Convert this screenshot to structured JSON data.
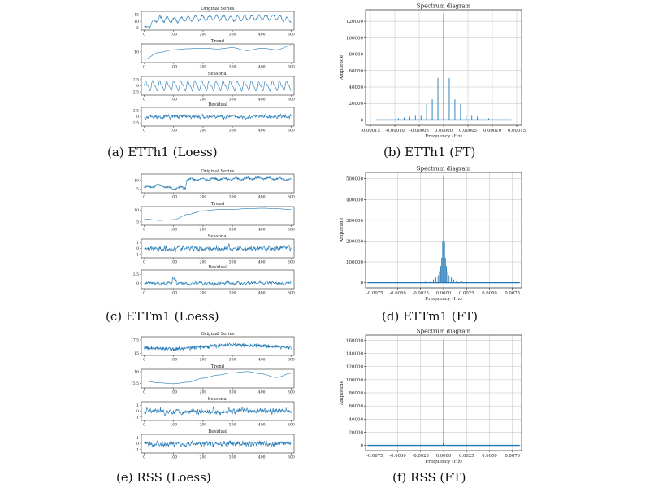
{
  "captions": [
    "(a) ETTh1 (Loess)",
    "(b) ETTh1 (FT)",
    "(c) ETTm1 (Loess)",
    "(d) ETTm1 (FT)",
    "(e) RSS (Loess)",
    "(f) RSS (FT)"
  ],
  "colors": {
    "line": "#1f77b4",
    "grid": "#b0b0b0",
    "axis": "#000000"
  },
  "chart_data": [
    {
      "id": "a",
      "type": "line",
      "caption": "(a) ETTh1 (Loess)",
      "x_ticks": [
        0,
        100,
        200,
        300,
        400,
        500
      ],
      "xlim": [
        -10,
        510
      ],
      "subplots": [
        {
          "title": "Original Series",
          "ylim": [
            3.5,
            17.5
          ],
          "y_ticks": [
            5,
            10,
            15
          ],
          "shape": "original_h1",
          "x": [
            0,
            10,
            50,
            100,
            150,
            200,
            250,
            300,
            350,
            400,
            450,
            500
          ],
          "y": [
            6,
            6.5,
            12,
            11,
            12,
            12.5,
            13,
            12,
            12.5,
            13,
            13,
            11
          ]
        },
        {
          "title": "Trend",
          "ylim": [
            6,
            13
          ],
          "y_ticks": [
            10
          ],
          "shape": "trend_h1",
          "x": [
            0,
            50,
            100,
            150,
            200,
            250,
            300,
            350,
            400,
            450,
            500
          ],
          "y": [
            7.2,
            9.8,
            10.8,
            11.2,
            11.4,
            11.1,
            11.6,
            10.5,
            11.4,
            10.8,
            12.4
          ]
        },
        {
          "title": "Seasonal",
          "ylim": [
            -3.8,
            3.8
          ],
          "y_ticks": [
            2.5,
            0.0,
            -2.5
          ],
          "shape": "seasonal_h1",
          "amplitude": 2.5,
          "period": 24
        },
        {
          "title": "Residual",
          "ylim": [
            -3.8,
            3.8
          ],
          "y_ticks": [
            2.5,
            0.0,
            -2.5
          ],
          "shape": "residual_h1",
          "amplitude": 2.5
        }
      ]
    },
    {
      "id": "b",
      "type": "line",
      "caption": "(b) ETTh1 (FT)",
      "title": "Spectrum diagram",
      "xlabel": "Frequency (Hz)",
      "ylabel": "Amplitude",
      "xlim": [
        -0.00016,
        0.00016
      ],
      "ylim": [
        -6500,
        134000
      ],
      "x_ticks": [
        -0.00015,
        -0.0001,
        -5e-05,
        0.0,
        5e-05,
        0.0001,
        0.00015
      ],
      "x_tick_labels": [
        "-0.00015",
        "-0.00010",
        "-0.00005",
        "0.00000",
        "0.00005",
        "0.00010",
        "0.00015"
      ],
      "y_ticks": [
        0,
        20000,
        40000,
        60000,
        80000,
        100000,
        120000
      ],
      "peaks": [
        {
          "x": 0.0,
          "y": 129000
        },
        {
          "x": -1.16e-05,
          "y": 51000
        },
        {
          "x": 1.16e-05,
          "y": 51000
        },
        {
          "x": -2.32e-05,
          "y": 25000
        },
        {
          "x": 2.32e-05,
          "y": 25000
        },
        {
          "x": -3.48e-05,
          "y": 19000
        },
        {
          "x": 3.48e-05,
          "y": 19000
        },
        {
          "x": -4.63e-05,
          "y": 5000
        },
        {
          "x": 4.63e-05,
          "y": 5000
        },
        {
          "x": -5.79e-05,
          "y": 5000
        },
        {
          "x": 5.79e-05,
          "y": 5000
        },
        {
          "x": -6.94e-05,
          "y": 4000
        },
        {
          "x": 6.94e-05,
          "y": 4000
        },
        {
          "x": -8.1e-05,
          "y": 3000
        },
        {
          "x": 8.1e-05,
          "y": 3000
        },
        {
          "x": -9.26e-05,
          "y": 2000
        },
        {
          "x": 9.26e-05,
          "y": 2000
        }
      ],
      "span": [
        -0.000139,
        0.000139
      ]
    },
    {
      "id": "c",
      "type": "line",
      "caption": "(c) ETTm1 (Loess)",
      "x_ticks": [
        0,
        100,
        200,
        300,
        400,
        500
      ],
      "xlim": [
        -10,
        510
      ],
      "subplots": [
        {
          "title": "Original Series",
          "ylim": [
            3,
            13.5
          ],
          "y_ticks": [
            5,
            10
          ],
          "shape": "original_m1",
          "x": [
            0,
            50,
            100,
            140,
            145,
            200,
            300,
            400,
            500
          ],
          "y": [
            6,
            7,
            5.5,
            6,
            10.5,
            10.5,
            10.8,
            11.2,
            10.5
          ]
        },
        {
          "title": "Trend",
          "ylim": [
            3.5,
            11.5
          ],
          "y_ticks": [
            5,
            10
          ],
          "shape": "trend_m1",
          "x": [
            0,
            50,
            100,
            150,
            200,
            250,
            300,
            350,
            400,
            450,
            500
          ],
          "y": [
            6.2,
            5.6,
            5.9,
            8.2,
            9.7,
            10.2,
            10.3,
            10.6,
            10.8,
            10.6,
            10.2
          ]
        },
        {
          "title": "Seasonal",
          "ylim": [
            -1.6,
            1.6
          ],
          "y_ticks": [
            1,
            0,
            -1
          ],
          "shape": "seasonal_m1",
          "amplitude": 1.0
        },
        {
          "title": "Residual",
          "ylim": [
            -1.6,
            3.8
          ],
          "y_ticks": [
            2.5,
            0.0
          ],
          "shape": "residual_m1",
          "amplitude": 1.2
        }
      ]
    },
    {
      "id": "d",
      "type": "line",
      "caption": "(d) ETTm1 (FT)",
      "title": "Spectrum diagram",
      "xlabel": "Frequency (Hz)",
      "ylabel": "Amplitude",
      "xlim": [
        -0.0085,
        0.0085
      ],
      "ylim": [
        -25000,
        530000
      ],
      "x_ticks": [
        -0.0075,
        -0.005,
        -0.0025,
        0.0,
        0.0025,
        0.005,
        0.0075
      ],
      "x_tick_labels": [
        "-0.0075",
        "-0.0050",
        "-0.0025",
        "0.0000",
        "0.0025",
        "0.0050",
        "0.0075"
      ],
      "y_ticks": [
        0,
        100000,
        200000,
        300000,
        400000,
        500000
      ],
      "peaks": [
        {
          "x": 0.0,
          "y": 515000
        },
        {
          "x": -0.0001,
          "y": 200000
        },
        {
          "x": 0.0001,
          "y": 200000
        },
        {
          "x": -0.0002,
          "y": 120000
        },
        {
          "x": 0.0002,
          "y": 120000
        },
        {
          "x": -0.0003,
          "y": 80000
        },
        {
          "x": 0.0003,
          "y": 80000
        },
        {
          "x": -0.00045,
          "y": 55000
        },
        {
          "x": 0.00045,
          "y": 55000
        },
        {
          "x": -0.0006,
          "y": 35000
        },
        {
          "x": 0.0006,
          "y": 35000
        },
        {
          "x": -0.00085,
          "y": 25000
        },
        {
          "x": 0.00085,
          "y": 25000
        },
        {
          "x": -0.0011,
          "y": 15000
        },
        {
          "x": 0.0011,
          "y": 15000
        },
        {
          "x": -0.0014,
          "y": 8000
        },
        {
          "x": 0.0014,
          "y": 8000
        },
        {
          "x": -0.002,
          "y": 5000
        },
        {
          "x": 0.002,
          "y": 5000
        },
        {
          "x": -0.0025,
          "y": 3000
        },
        {
          "x": 0.0025,
          "y": 3000
        }
      ],
      "span": [
        -0.0083,
        0.0083
      ]
    },
    {
      "id": "e",
      "type": "line",
      "caption": "(e) RSS (Loess)",
      "x_ticks": [
        0,
        100,
        200,
        300,
        400,
        500
      ],
      "xlim": [
        -10,
        510
      ],
      "subplots": [
        {
          "title": "Original Series",
          "ylim": [
            14.6,
            18.1
          ],
          "y_ticks": [
            17.5,
            15.0
          ],
          "shape": "original_rss",
          "x": [
            0,
            100,
            200,
            300,
            400,
            500
          ],
          "y": [
            16.0,
            15.8,
            16.2,
            16.6,
            16.4,
            16.1
          ]
        },
        {
          "title": "Trend",
          "ylim": [
            15.3,
            16.1
          ],
          "y_ticks": [
            16.0,
            15.5
          ],
          "shape": "trend_rss",
          "x": [
            0,
            50,
            100,
            150,
            200,
            250,
            300,
            350,
            400,
            450,
            500
          ],
          "y": [
            15.6,
            15.52,
            15.48,
            15.55,
            15.72,
            15.85,
            15.95,
            16.0,
            15.9,
            15.75,
            15.93
          ]
        },
        {
          "title": "Seasonal",
          "ylim": [
            -1.6,
            1.6
          ],
          "y_ticks": [
            1,
            0,
            -1
          ],
          "shape": "seasonal_rss",
          "amplitude": 1.0
        },
        {
          "title": "Residual",
          "ylim": [
            -1.6,
            1.6
          ],
          "y_ticks": [
            1,
            0,
            -1
          ],
          "shape": "residual_rss",
          "amplitude": 1.0
        }
      ]
    },
    {
      "id": "f",
      "type": "line",
      "caption": "(f) RSS (FT)",
      "title": "Spectrum diagram",
      "xlabel": "Frequency (Hz)",
      "ylabel": "Amplitude",
      "xlim": [
        -0.0085,
        0.0085
      ],
      "ylim": [
        -8000,
        168000
      ],
      "x_ticks": [
        -0.0075,
        -0.005,
        -0.0025,
        0.0,
        0.0025,
        0.005,
        0.0075
      ],
      "x_tick_labels": [
        "-0.0075",
        "-0.0050",
        "-0.0025",
        "0.0000",
        "0.0025",
        "0.0050",
        "0.0075"
      ],
      "y_ticks": [
        0,
        20000,
        40000,
        60000,
        80000,
        100000,
        120000,
        140000,
        160000
      ],
      "peaks": [
        {
          "x": 0.0,
          "y": 161000
        },
        {
          "x": -5e-05,
          "y": 3000
        },
        {
          "x": 5e-05,
          "y": 3000
        }
      ],
      "span": [
        -0.0083,
        0.0083
      ]
    }
  ]
}
